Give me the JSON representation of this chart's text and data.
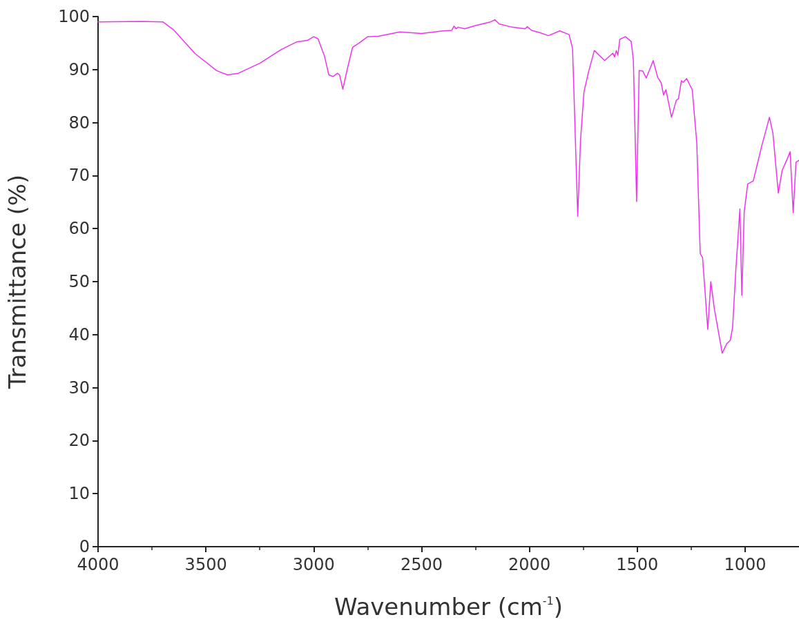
{
  "chart_data": {
    "type": "line",
    "xlabel": "Wavenumber (cm$^{-1}$)",
    "ylabel": "Transmittance (%)",
    "xlim": [
      4000,
      750
    ],
    "xticks": [
      4000,
      3500,
      3000,
      2500,
      2000,
      1500,
      1000
    ],
    "ylim": [
      0,
      100
    ],
    "yticks": [
      0,
      10,
      20,
      30,
      40,
      50,
      60,
      70,
      80,
      90,
      100
    ],
    "marker": "none",
    "line_style": "solid",
    "series": [
      {
        "color": "#ee33ee",
        "x": [
          4000,
          3800,
          3700,
          3650,
          3550,
          3450,
          3400,
          3350,
          3250,
          3150,
          3080,
          3030,
          3000,
          2980,
          2950,
          2930,
          2910,
          2890,
          2880,
          2865,
          2845,
          2820,
          2790,
          2750,
          2700,
          2600,
          2500,
          2400,
          2360,
          2350,
          2340,
          2330,
          2300,
          2250,
          2180,
          2160,
          2140,
          2080,
          2020,
          2010,
          1990,
          1955,
          1912,
          1859,
          1816,
          1800,
          1790,
          1776,
          1763,
          1747,
          1725,
          1699,
          1651,
          1613,
          1605,
          1597,
          1590,
          1581,
          1555,
          1528,
          1518,
          1503,
          1491,
          1474,
          1458,
          1426,
          1405,
          1389,
          1378,
          1367,
          1341,
          1319,
          1309,
          1295,
          1287,
          1271,
          1245,
          1224,
          1208,
          1197,
          1173,
          1159,
          1143,
          1106,
          1085,
          1069,
          1058,
          1042,
          1024,
          1015,
          1004,
          988,
          962,
          924,
          887,
          871,
          846,
          828,
          807,
          791,
          777,
          764,
          750
        ],
        "values": [
          99.0,
          99.1,
          99.0,
          97.5,
          93.0,
          89.8,
          89.0,
          89.3,
          91.2,
          93.8,
          95.2,
          95.5,
          96.2,
          95.8,
          92.5,
          89.0,
          88.7,
          89.3,
          89.0,
          86.3,
          90.0,
          94.2,
          95.0,
          96.2,
          96.3,
          97.1,
          96.8,
          97.3,
          97.4,
          98.2,
          97.7,
          98.0,
          97.7,
          98.3,
          99.0,
          99.4,
          98.6,
          98.0,
          97.7,
          98.1,
          97.4,
          97.0,
          96.4,
          97.3,
          96.6,
          94.0,
          81.0,
          62.3,
          76.7,
          85.8,
          89.7,
          93.6,
          91.7,
          93.1,
          92.4,
          93.6,
          92.7,
          95.7,
          96.2,
          95.3,
          91.8,
          65.1,
          89.8,
          89.7,
          88.4,
          91.7,
          88.5,
          87.5,
          85.2,
          86.2,
          81.0,
          84.2,
          84.5,
          87.9,
          87.6,
          88.3,
          86.2,
          76.2,
          55.3,
          54.5,
          41.0,
          50.0,
          45.0,
          36.5,
          38.3,
          38.9,
          41.3,
          52.8,
          63.7,
          47.4,
          63.2,
          68.4,
          69.0,
          75.4,
          81.0,
          78.0,
          66.7,
          71.0,
          72.9,
          74.5,
          63.0,
          72.5,
          72.9
        ]
      }
    ]
  }
}
